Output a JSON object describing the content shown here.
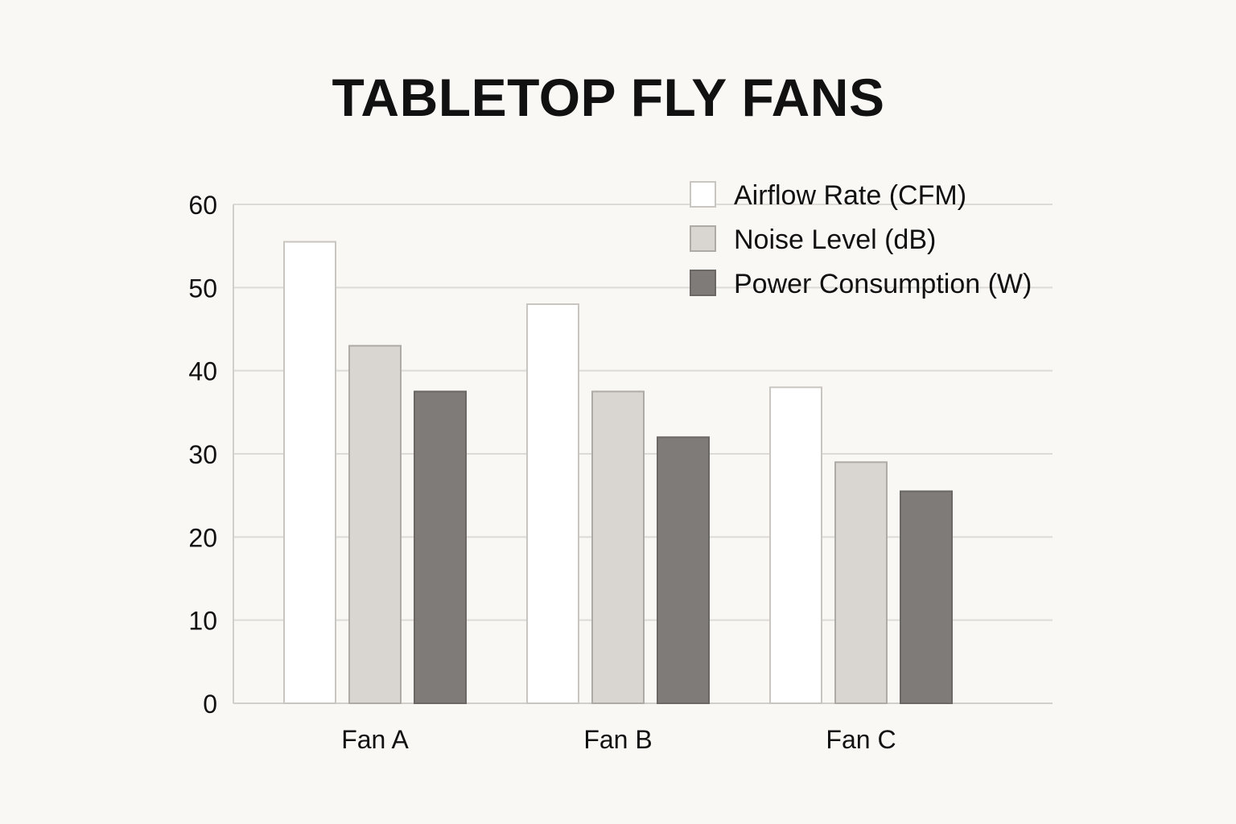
{
  "chart_data": {
    "type": "bar",
    "title": "TABLETOP FLY FANS",
    "xlabel": "",
    "ylabel": "",
    "categories": [
      "Fan A",
      "Fan B",
      "Fan C"
    ],
    "series": [
      {
        "name": "Airflow Rate (CFM)",
        "values": [
          55.5,
          48,
          38
        ],
        "fill": "#ffffff",
        "stroke": "#c9c5c0"
      },
      {
        "name": "Noise Level (dB)",
        "values": [
          43,
          37.5,
          29
        ],
        "fill": "#d9d6d2",
        "stroke": "#aeaaa6"
      },
      {
        "name": "Power Consumption (W)",
        "values": [
          37.5,
          32,
          25.5
        ],
        "fill": "#7f7b78",
        "stroke": "#6a6764"
      }
    ],
    "ylim": [
      0,
      60
    ],
    "yticks": [
      "0",
      "10",
      "20",
      "30",
      "40",
      "50",
      "60"
    ],
    "grid": true,
    "legend_position": "top-right"
  }
}
